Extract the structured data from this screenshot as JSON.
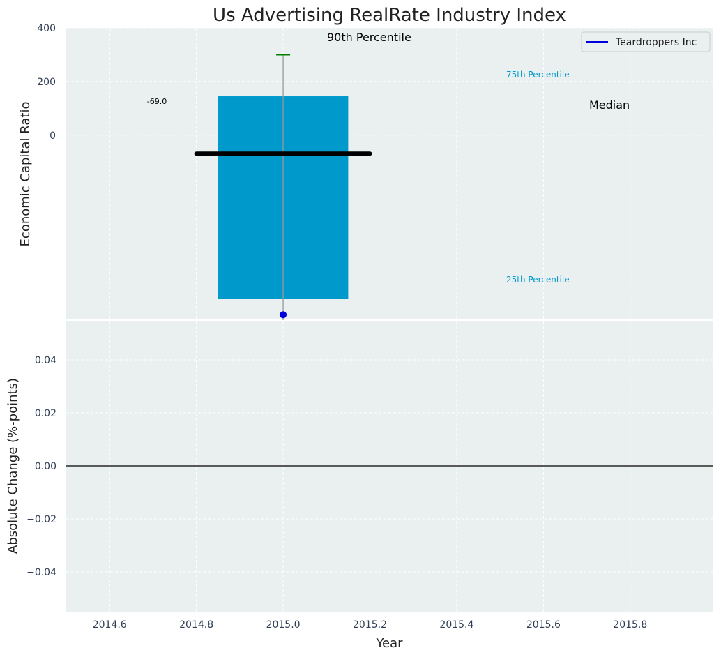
{
  "chart_data": [
    {
      "panel": "top",
      "type": "bar",
      "title": "Us Advertising RealRate Industry Index",
      "ylabel": "Economic Capital Ratio",
      "ylim": [
        -690,
        400
      ],
      "yticks": [
        0,
        200,
        400
      ],
      "ytick_labels": [
        "0",
        "200",
        "400"
      ],
      "grid": true,
      "colors": {
        "bar": "#0099cc",
        "median": "#000000",
        "whisker": "#999999",
        "p90_cap": "#008000",
        "company_point": "#0000dd",
        "percentile_label": "#0099cc"
      },
      "box": {
        "x": 2015.0,
        "x_from": 2014.85,
        "x_to": 2015.15,
        "p25": -610,
        "p75": 145
      },
      "median": {
        "x_from": 2014.8,
        "x_to": 2015.2,
        "value": -69.0,
        "label": "-69.0"
      },
      "whisker": {
        "x": 2015.0,
        "p90": 300
      },
      "company_point": {
        "x": 2015.0,
        "value": -670,
        "series": "Teardroppers Inc"
      },
      "annotations": {
        "p90": "90th Percentile",
        "p75": "75th Percentile",
        "median": "Median",
        "p25": "25th Percentile"
      },
      "legend": {
        "position": "top-right",
        "entries": [
          "Teardroppers Inc"
        ]
      }
    },
    {
      "panel": "bottom",
      "type": "line",
      "xlabel": "Year",
      "ylabel": "Absolute Change (%-points)",
      "xlim": [
        2014.5,
        2015.99
      ],
      "xticks": [
        2014.6,
        2014.8,
        2015.0,
        2015.2,
        2015.4,
        2015.6,
        2015.8
      ],
      "xtick_labels": [
        "2014.6",
        "2014.8",
        "2015.0",
        "2015.2",
        "2015.4",
        "2015.6",
        "2015.8"
      ],
      "ylim": [
        -0.055,
        0.055
      ],
      "yticks": [
        -0.04,
        -0.02,
        0.0,
        0.02,
        0.04
      ],
      "ytick_labels": [
        "−0.04",
        "−0.02",
        "0.00",
        "0.02",
        "0.04"
      ],
      "zero_line": 0.0,
      "grid": true,
      "series": []
    }
  ]
}
